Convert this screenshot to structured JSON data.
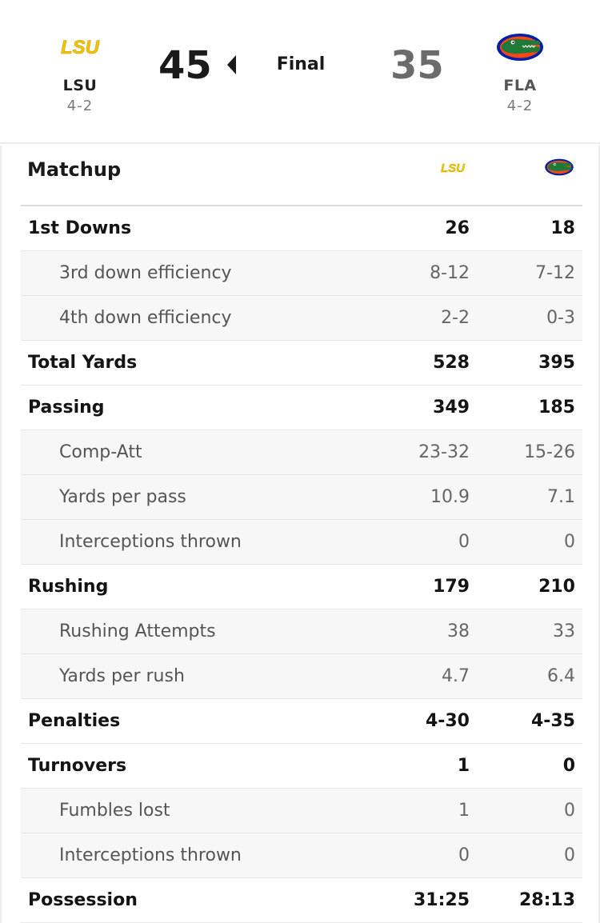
{
  "away": {
    "abbr": "LSU",
    "record": "4-2",
    "score": "45",
    "logo_text": "LSU",
    "color": "#FDD023"
  },
  "home": {
    "abbr": "FLA",
    "record": "4-2",
    "score": "35",
    "logo": "gator-logo",
    "color": "#0021A5",
    "accent": "#FA4616"
  },
  "status": "Final",
  "matchup": {
    "title": "Matchup",
    "rows": [
      {
        "label": "1st Downs",
        "lsu": "26",
        "fla": "18",
        "type": "main"
      },
      {
        "label": "3rd down efficiency",
        "lsu": "8-12",
        "fla": "7-12",
        "type": "sub"
      },
      {
        "label": "4th down efficiency",
        "lsu": "2-2",
        "fla": "0-3",
        "type": "sub"
      },
      {
        "label": "Total Yards",
        "lsu": "528",
        "fla": "395",
        "type": "main"
      },
      {
        "label": "Passing",
        "lsu": "349",
        "fla": "185",
        "type": "main"
      },
      {
        "label": "Comp-Att",
        "lsu": "23-32",
        "fla": "15-26",
        "type": "sub"
      },
      {
        "label": "Yards per pass",
        "lsu": "10.9",
        "fla": "7.1",
        "type": "sub"
      },
      {
        "label": "Interceptions thrown",
        "lsu": "0",
        "fla": "0",
        "type": "sub"
      },
      {
        "label": "Rushing",
        "lsu": "179",
        "fla": "210",
        "type": "main"
      },
      {
        "label": "Rushing Attempts",
        "lsu": "38",
        "fla": "33",
        "type": "sub"
      },
      {
        "label": "Yards per rush",
        "lsu": "4.7",
        "fla": "6.4",
        "type": "sub"
      },
      {
        "label": "Penalties",
        "lsu": "4-30",
        "fla": "4-35",
        "type": "main"
      },
      {
        "label": "Turnovers",
        "lsu": "1",
        "fla": "0",
        "type": "main"
      },
      {
        "label": "Fumbles lost",
        "lsu": "1",
        "fla": "0",
        "type": "sub"
      },
      {
        "label": "Interceptions thrown",
        "lsu": "0",
        "fla": "0",
        "type": "sub"
      },
      {
        "label": "Possession",
        "lsu": "31:25",
        "fla": "28:13",
        "type": "main"
      }
    ]
  }
}
